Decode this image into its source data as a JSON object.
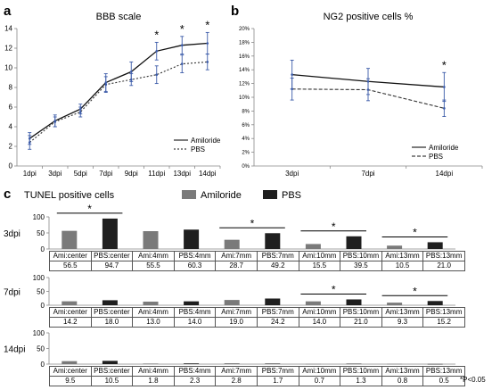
{
  "panels": {
    "a": {
      "letter": "a"
    },
    "b": {
      "letter": "b"
    },
    "c": {
      "letter": "c"
    }
  },
  "significance_note": "*P<0.05",
  "chart_data": [
    {
      "id": "a",
      "type": "line",
      "title": "BBB scale",
      "categories": [
        "1dpi",
        "3dpi",
        "5dpi",
        "7dpi",
        "9dpi",
        "11dpi",
        "13dpi",
        "14dpi"
      ],
      "ylim": [
        0,
        14
      ],
      "yticks": [
        "0",
        "2",
        "4",
        "6",
        "8",
        "10",
        "12",
        "14"
      ],
      "series": [
        {
          "name": "Amiloride",
          "style": "solid",
          "values": [
            2.8,
            4.6,
            5.8,
            8.5,
            9.6,
            11.7,
            12.3,
            12.5
          ],
          "err": [
            0.6,
            0.6,
            0.5,
            0.9,
            1.0,
            0.9,
            0.9,
            1.1
          ]
        },
        {
          "name": "PBS",
          "style": "dotted",
          "values": [
            2.4,
            4.5,
            5.5,
            8.3,
            8.8,
            9.3,
            10.4,
            10.6
          ],
          "err": [
            0.7,
            0.5,
            0.5,
            0.8,
            0.6,
            0.9,
            0.9,
            0.8
          ]
        }
      ],
      "asterisks": [
        {
          "index": 5,
          "label": "*"
        },
        {
          "index": 6,
          "label": "*"
        },
        {
          "index": 7,
          "label": "*"
        }
      ]
    },
    {
      "id": "b",
      "type": "line",
      "title": "NG2 positive cells %",
      "categories": [
        "3dpi",
        "7dpi",
        "14dpi"
      ],
      "ylim": [
        0,
        20
      ],
      "yticks": [
        "0%",
        "2%",
        "4%",
        "6%",
        "8%",
        "10%",
        "12%",
        "14%",
        "16%",
        "18%",
        "20%"
      ],
      "series": [
        {
          "name": "Amiloride",
          "style": "solid",
          "values": [
            13.3,
            12.3,
            11.5
          ],
          "err": [
            2.1,
            1.9,
            2.1
          ]
        },
        {
          "name": "PBS",
          "style": "dashed",
          "values": [
            11.2,
            11.1,
            8.4
          ],
          "err": [
            1.6,
            1.6,
            1.2
          ]
        }
      ],
      "asterisks": [
        {
          "index": 2,
          "label": "*"
        }
      ]
    },
    {
      "id": "c",
      "type": "bar",
      "title": "TUNEL positive cells",
      "legend": [
        {
          "name": "Amiloride",
          "color": "#7a7a7a"
        },
        {
          "name": "PBS",
          "color": "#1f1f1f"
        }
      ],
      "categories": [
        "Ami:center",
        "PBS:center",
        "Ami:4mm",
        "PBS:4mm",
        "Ami:7mm",
        "PBS:7mm",
        "Ami:10mm",
        "PBS:10mm",
        "Ami:13mm",
        "PBS:13mm"
      ],
      "colors": [
        "#7a7a7a",
        "#1f1f1f",
        "#7a7a7a",
        "#1f1f1f",
        "#7a7a7a",
        "#1f1f1f",
        "#7a7a7a",
        "#1f1f1f",
        "#7a7a7a",
        "#1f1f1f"
      ],
      "rows": [
        {
          "label": "3dpi",
          "ylim": [
            0,
            100
          ],
          "yticks": [
            "0",
            "50",
            "100"
          ],
          "values": [
            56.5,
            94.7,
            55.5,
            60.3,
            28.7,
            49.2,
            15.5,
            39.5,
            10.5,
            21.0
          ],
          "display": [
            "56.5",
            "94.7",
            "55.5",
            "60.3",
            "28.7",
            "49.2",
            "15.5",
            "39.5",
            "10.5",
            "21.0"
          ],
          "sig_pairs": [
            [
              0,
              1
            ],
            [
              4,
              5
            ],
            [
              6,
              7
            ],
            [
              8,
              9
            ]
          ]
        },
        {
          "label": "7dpi",
          "ylim": [
            0,
            100
          ],
          "yticks": [
            "0",
            "50",
            "100"
          ],
          "values": [
            14.2,
            18.0,
            13.0,
            14.0,
            19.0,
            24.2,
            14.0,
            21.0,
            9.3,
            15.2
          ],
          "display": [
            "14.2",
            "18.0",
            "13.0",
            "14.0",
            "19.0",
            "24.2",
            "14.0",
            "21.0",
            "9.3",
            "15.2"
          ],
          "sig_pairs": [
            [
              6,
              7
            ],
            [
              8,
              9
            ]
          ]
        },
        {
          "label": "14dpi",
          "ylim": [
            0,
            100
          ],
          "yticks": [
            "0",
            "50",
            "100"
          ],
          "values": [
            9.5,
            10.5,
            1.8,
            2.3,
            2.8,
            1.7,
            0.7,
            1.3,
            0.8,
            0.5
          ],
          "display": [
            "9.5",
            "10.5",
            "1.8",
            "2.3",
            "2.8",
            "1.7",
            "0.7",
            "1.3",
            "0.8",
            "0.5"
          ],
          "sig_pairs": []
        }
      ]
    }
  ]
}
